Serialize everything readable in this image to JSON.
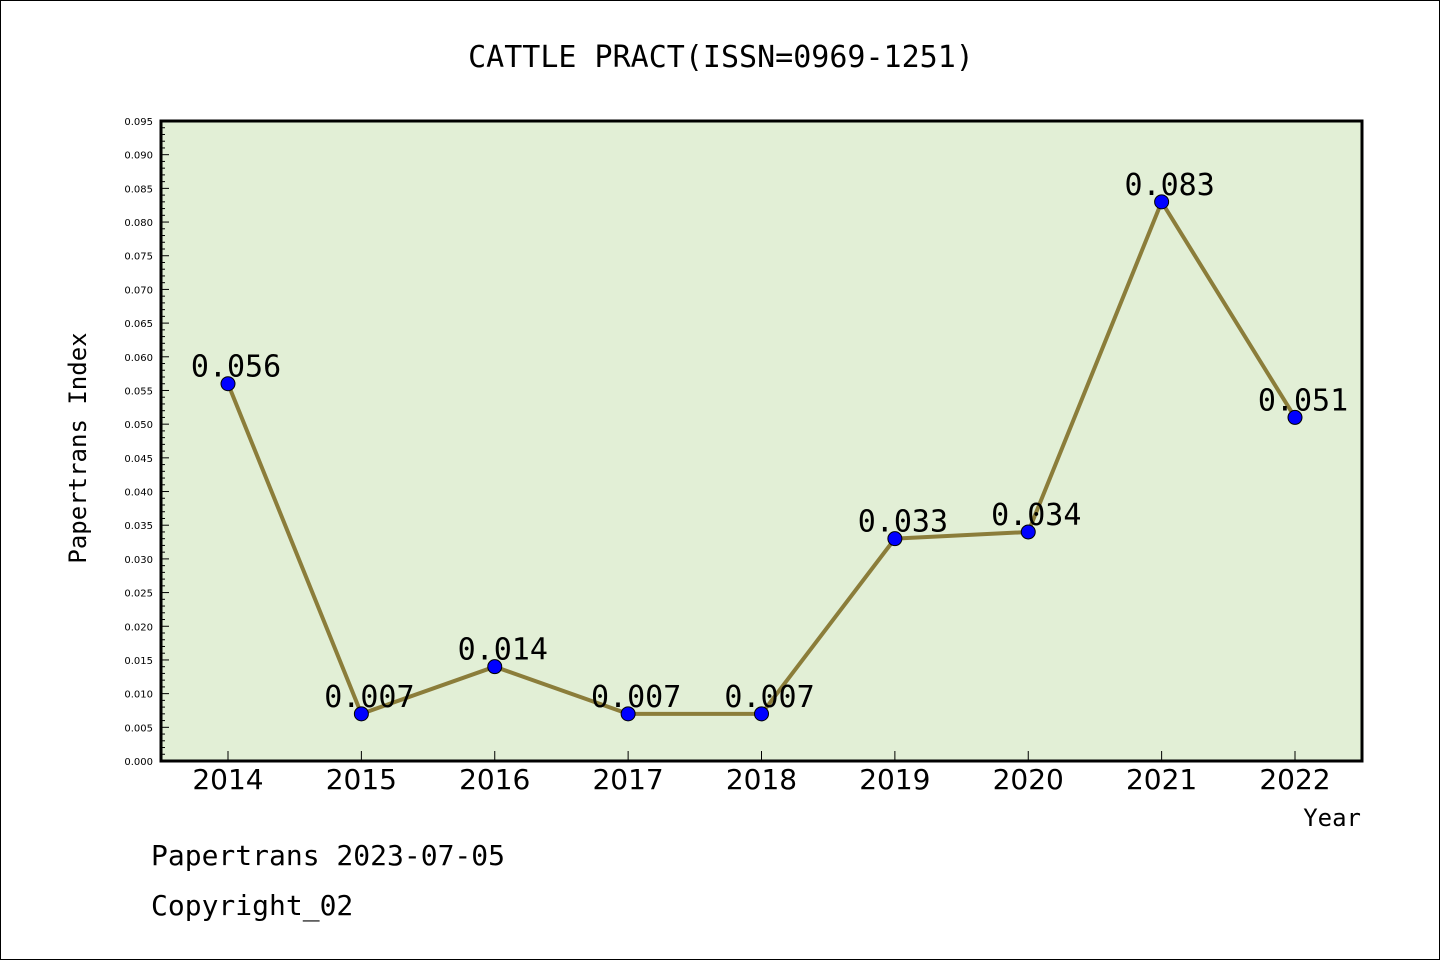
{
  "chart_data": {
    "type": "line",
    "title": "CATTLE PRACT(ISSN=0969-1251)",
    "xlabel": "Year",
    "ylabel": "Papertrans Index",
    "categories": [
      "2014",
      "2015",
      "2016",
      "2017",
      "2018",
      "2019",
      "2020",
      "2021",
      "2022"
    ],
    "series": [
      {
        "values": [
          0.056,
          0.007,
          0.014,
          0.007,
          0.007,
          0.033,
          0.034,
          0.083,
          0.051
        ],
        "labels": [
          "0.056",
          "0.007",
          "0.014",
          "0.007",
          "0.007",
          "0.033",
          "0.034",
          "0.083",
          "0.051"
        ],
        "line_color": "#8b7d3a",
        "marker_color": "#0000ff"
      }
    ],
    "ylim": [
      0,
      0.095
    ],
    "yticks": [
      "0.000",
      "0.005",
      "0.010",
      "0.015",
      "0.020",
      "0.025",
      "0.030",
      "0.035",
      "0.040",
      "0.045",
      "0.050",
      "0.055",
      "0.060",
      "0.065",
      "0.070",
      "0.075",
      "0.080",
      "0.085",
      "0.090",
      "0.095"
    ],
    "plot_background": "#e2efd6",
    "grid": false,
    "legend": "none"
  },
  "footer": {
    "line1": "Papertrans 2023-07-05",
    "line2": "Copyright_02"
  }
}
